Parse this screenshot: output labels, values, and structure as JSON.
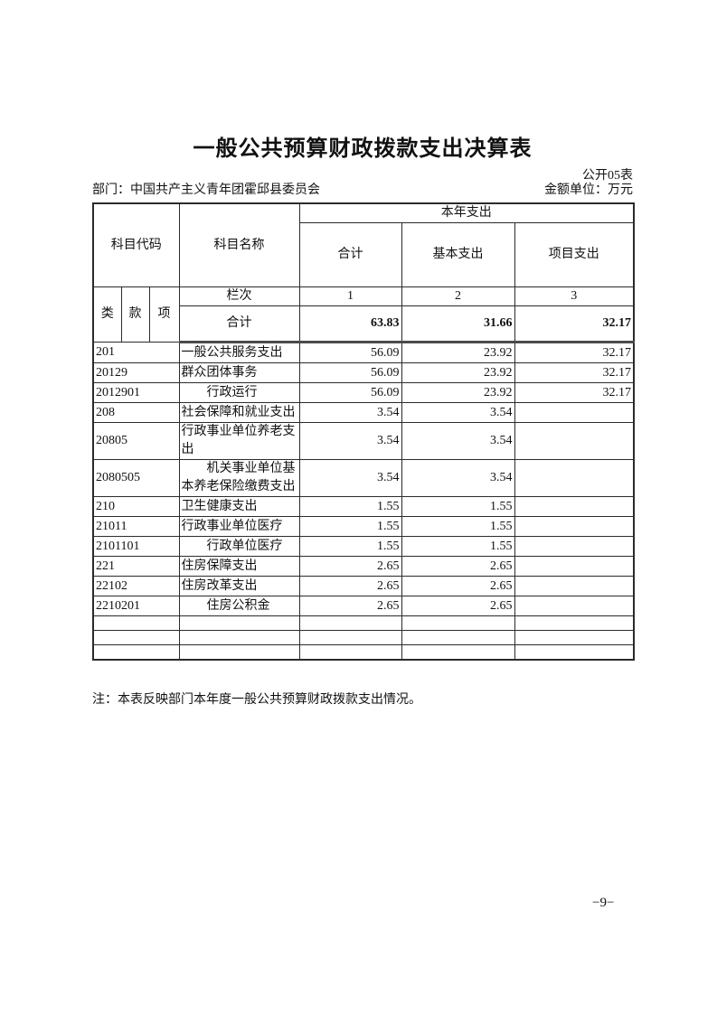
{
  "page": {
    "title": "一般公共预算财政拨款支出决算表",
    "table_code": "公开05表",
    "department_label": "部门：中国共产主义青年团霍邱县委员会",
    "unit_label": "金额单位：万元",
    "note": "注：本表反映部门本年度一般公共预算财政拨款支出情况。",
    "page_number": "−9−"
  },
  "table": {
    "headers": {
      "subject_code": "科目代码",
      "subject_name": "科目名称",
      "current_year_expenditure": "本年支出",
      "total": "合计",
      "basic_expenditure": "基本支出",
      "project_expenditure": "项目支出",
      "class": "类",
      "section": "款",
      "item": "项",
      "column_row_label": "栏次",
      "column_numbers": [
        "1",
        "2",
        "3"
      ]
    },
    "total_row": {
      "label": "合计",
      "total": "63.83",
      "basic": "31.66",
      "project": "32.17"
    },
    "rows": [
      {
        "code": "201",
        "name": "一般公共服务支出",
        "indent": false,
        "total": "56.09",
        "basic": "23.92",
        "project": "32.17"
      },
      {
        "code": "20129",
        "name": "群众团体事务",
        "indent": false,
        "total": "56.09",
        "basic": "23.92",
        "project": "32.17"
      },
      {
        "code": "2012901",
        "name": "行政运行",
        "indent": true,
        "total": "56.09",
        "basic": "23.92",
        "project": "32.17"
      },
      {
        "code": "208",
        "name": "社会保障和就业支出",
        "indent": false,
        "total": "3.54",
        "basic": "3.54",
        "project": ""
      },
      {
        "code": "20805",
        "name": "行政事业单位养老支出",
        "indent": false,
        "total": "3.54",
        "basic": "3.54",
        "project": ""
      },
      {
        "code": "2080505",
        "name": "机关事业单位基本养老保险缴费支出",
        "indent": true,
        "total": "3.54",
        "basic": "3.54",
        "project": ""
      },
      {
        "code": "210",
        "name": "卫生健康支出",
        "indent": false,
        "total": "1.55",
        "basic": "1.55",
        "project": ""
      },
      {
        "code": "21011",
        "name": "行政事业单位医疗",
        "indent": false,
        "total": "1.55",
        "basic": "1.55",
        "project": ""
      },
      {
        "code": "2101101",
        "name": "行政单位医疗",
        "indent": true,
        "total": "1.55",
        "basic": "1.55",
        "project": ""
      },
      {
        "code": "221",
        "name": "住房保障支出",
        "indent": false,
        "total": "2.65",
        "basic": "2.65",
        "project": ""
      },
      {
        "code": "22102",
        "name": "住房改革支出",
        "indent": false,
        "total": "2.65",
        "basic": "2.65",
        "project": ""
      },
      {
        "code": "2210201",
        "name": "住房公积金",
        "indent": true,
        "total": "2.65",
        "basic": "2.65",
        "project": ""
      }
    ],
    "empty_row_count": 3
  }
}
